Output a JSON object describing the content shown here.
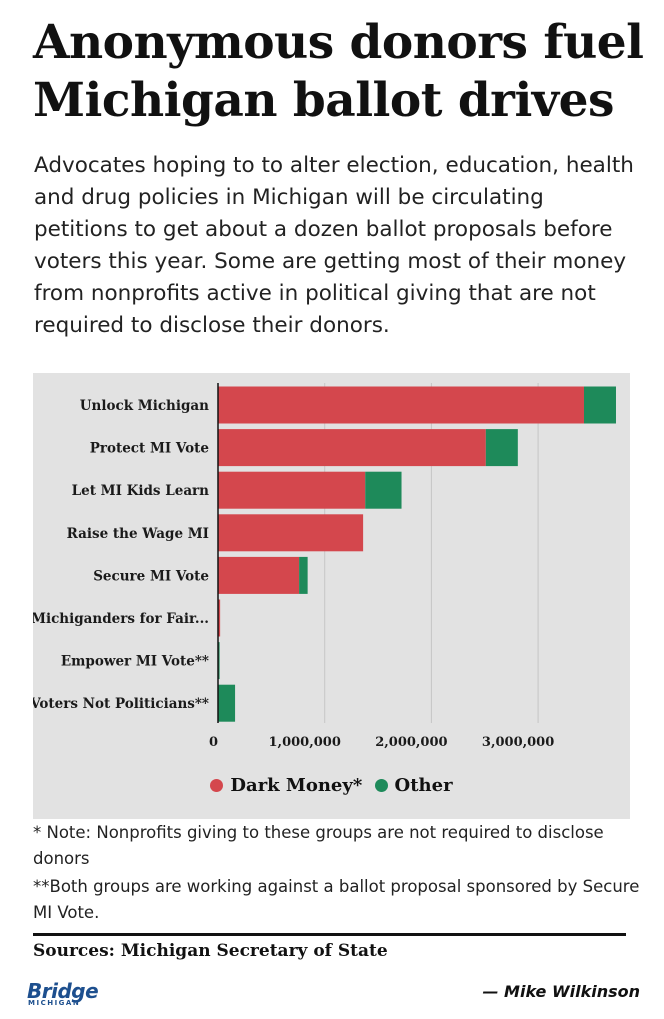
{
  "title": "Anonymous donors fuel Michigan ballot drives",
  "subtitle": "Advocates hoping to to alter election, education, health and drug policies in Michigan will be circulating petitions to get about a dozen ballot proposals before voters this year. Some are getting most of their money from nonprofits active in political giving that are not required to disclose their donors.",
  "colors": {
    "dark_money": "#d4474d",
    "other": "#1e8a5a",
    "panel": "#e2e2e2"
  },
  "chart_data": {
    "type": "bar",
    "orientation": "horizontal",
    "stacked": true,
    "categories": [
      "Unlock Michigan",
      "Protect MI Vote",
      "Let MI Kids Learn",
      "Raise the Wage MI",
      "Secure MI Vote",
      "Michiganders for Fair...",
      "Empower MI Vote**",
      "Voters Not Politicians**"
    ],
    "series": [
      {
        "name": "Dark Money*",
        "values": [
          3430000,
          2510000,
          1380000,
          1360000,
          760000,
          20000,
          0,
          0
        ]
      },
      {
        "name": "Other",
        "values": [
          300000,
          300000,
          340000,
          0,
          80000,
          0,
          15000,
          160000
        ]
      }
    ],
    "xlim": [
      0,
      3750000
    ],
    "x_ticks": [
      0,
      1000000,
      2000000,
      3000000
    ],
    "x_tick_labels": [
      "0",
      "1,000,000",
      "2,000,000",
      "3,000,000"
    ],
    "grid": true,
    "legend": "bottom"
  },
  "legend": {
    "dark_money": "Dark Money*",
    "other": "Other"
  },
  "notes": [
    "* Note: Nonprofits giving to these groups are not required to disclose donors",
    "**Both groups are working against a ballot proposal sponsored by Secure MI Vote."
  ],
  "sources": "Sources: Michigan Secretary of State",
  "logo": {
    "name": "Bridge",
    "sub": "MICHIGAN"
  },
  "byline": "— Mike Wilkinson"
}
